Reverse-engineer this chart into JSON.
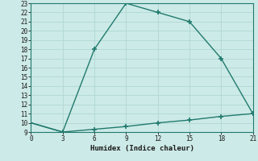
{
  "xlabel": "Humidex (Indice chaleur)",
  "line1_x": [
    0,
    3,
    6,
    9,
    12,
    15,
    18,
    21
  ],
  "line1_y": [
    10,
    9,
    18,
    23,
    22,
    21,
    17,
    11
  ],
  "line2_x": [
    0,
    3,
    6,
    9,
    12,
    15,
    18,
    21
  ],
  "line2_y": [
    10,
    9,
    9.3,
    9.6,
    10.0,
    10.3,
    10.7,
    11
  ],
  "line_color": "#217a6e",
  "bg_color": "#cceae7",
  "grid_color": "#b0d8d4",
  "xlim": [
    0,
    21
  ],
  "ylim": [
    9,
    23
  ],
  "xticks": [
    0,
    3,
    6,
    9,
    12,
    15,
    18,
    21
  ],
  "yticks": [
    9,
    10,
    11,
    12,
    13,
    14,
    15,
    16,
    17,
    18,
    19,
    20,
    21,
    22,
    23
  ],
  "marker": "+",
  "markersize": 4,
  "markeredgewidth": 1.2,
  "linewidth": 1.0,
  "tick_fontsize": 5.5,
  "xlabel_fontsize": 6.5
}
